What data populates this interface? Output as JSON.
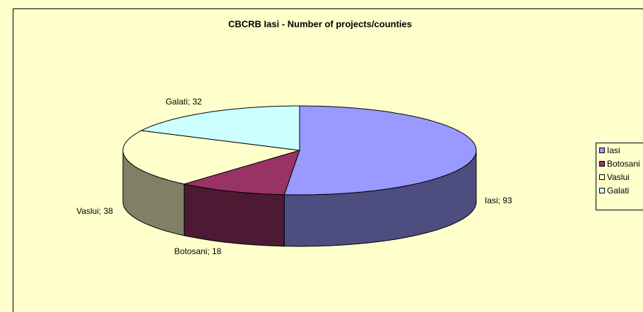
{
  "chart_data": {
    "type": "pie",
    "title": "CBCRB Iasi - Number of projects/counties",
    "categories": [
      "Iasi",
      "Botosani",
      "Vaslui",
      "Galati"
    ],
    "values": [
      93,
      18,
      38,
      32
    ],
    "value_labels": [
      "Iasi; 93",
      "Botosani; 18",
      "Vaslui; 38",
      "Galati; 32"
    ],
    "colors": [
      "#9999ff",
      "#993366",
      "#ffffcc",
      "#ccffff"
    ],
    "legend": "right"
  }
}
